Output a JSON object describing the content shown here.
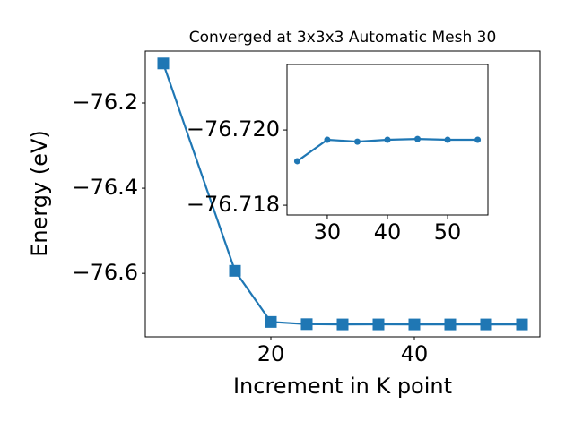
{
  "chart_data": [
    {
      "type": "line",
      "title": "Converged at 3x3x3 Automatic Mesh 30",
      "x_label": "Increment in K point",
      "y_label": "Energy (eV)",
      "x": [
        5,
        15,
        20,
        25,
        30,
        35,
        40,
        45,
        50,
        55
      ],
      "series": [
        {
          "color": "#1f77b4",
          "marker": "square",
          "values": [
            -76.107,
            -76.594,
            -76.714,
            -76.71917,
            -76.71974,
            -76.71969,
            -76.71974,
            -76.71976,
            -76.71974,
            -76.71974
          ]
        }
      ],
      "xlim": [
        2.5,
        57.5
      ],
      "ylim": [
        -76.749,
        -76.078
      ],
      "xticks": [
        20,
        40
      ],
      "yticks": [
        {
          "value": -76.2,
          "label": "−76.2"
        },
        {
          "value": -76.4,
          "label": "−76.4"
        },
        {
          "value": -76.6,
          "label": "−76.6"
        }
      ]
    },
    {
      "type": "line",
      "x": [
        25,
        30,
        35,
        40,
        45,
        50,
        55
      ],
      "series": [
        {
          "color": "#1f77b4",
          "marker": "circle",
          "values": [
            -76.71917,
            -76.71974,
            -76.71969,
            -76.71974,
            -76.71976,
            -76.71974,
            -76.71974
          ]
        }
      ],
      "xlim": [
        23.3,
        56.7
      ],
      "ylim": [
        -76.71774,
        -76.72174
      ],
      "xticks": [
        30,
        40,
        50
      ],
      "yticks": [
        {
          "value": -76.72,
          "label": "−76.720"
        },
        {
          "value": -76.718,
          "label": "−76.718"
        }
      ]
    }
  ]
}
